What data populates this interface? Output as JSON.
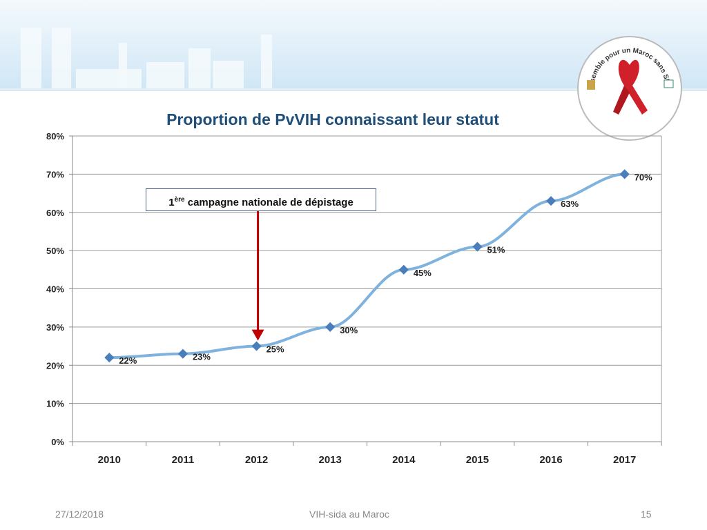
{
  "slide": {
    "date": "27/12/2018",
    "footer": "VIH-sida au Maroc",
    "page": "15"
  },
  "logo": {
    "text_top": "Ensemble pour un Maroc sans SIDA",
    "colors": {
      "ribbon": "#d0202a"
    }
  },
  "annotation": {
    "prefix": "1",
    "superscript": "ère",
    "text": " campagne nationale de dépistage",
    "target_year": "2012",
    "arrow_color": "#c00000"
  },
  "chart_data": {
    "type": "line",
    "title": "Proportion de PvVIH connaissant leur statut",
    "categories": [
      "2010",
      "2011",
      "2012",
      "2013",
      "2014",
      "2015",
      "2016",
      "2017"
    ],
    "values": [
      22,
      23,
      25,
      30,
      45,
      51,
      63,
      70
    ],
    "data_labels": [
      "22%",
      "23%",
      "25%",
      "30%",
      "45%",
      "51%",
      "63%",
      "70%"
    ],
    "ylim": [
      0,
      80
    ],
    "yticks": [
      "0%",
      "10%",
      "20%",
      "30%",
      "40%",
      "50%",
      "60%",
      "70%",
      "80%"
    ],
    "grid": true,
    "line_color": "#7fb2dd",
    "marker_color": "#4a7ebb",
    "xlabel": "",
    "ylabel": ""
  }
}
